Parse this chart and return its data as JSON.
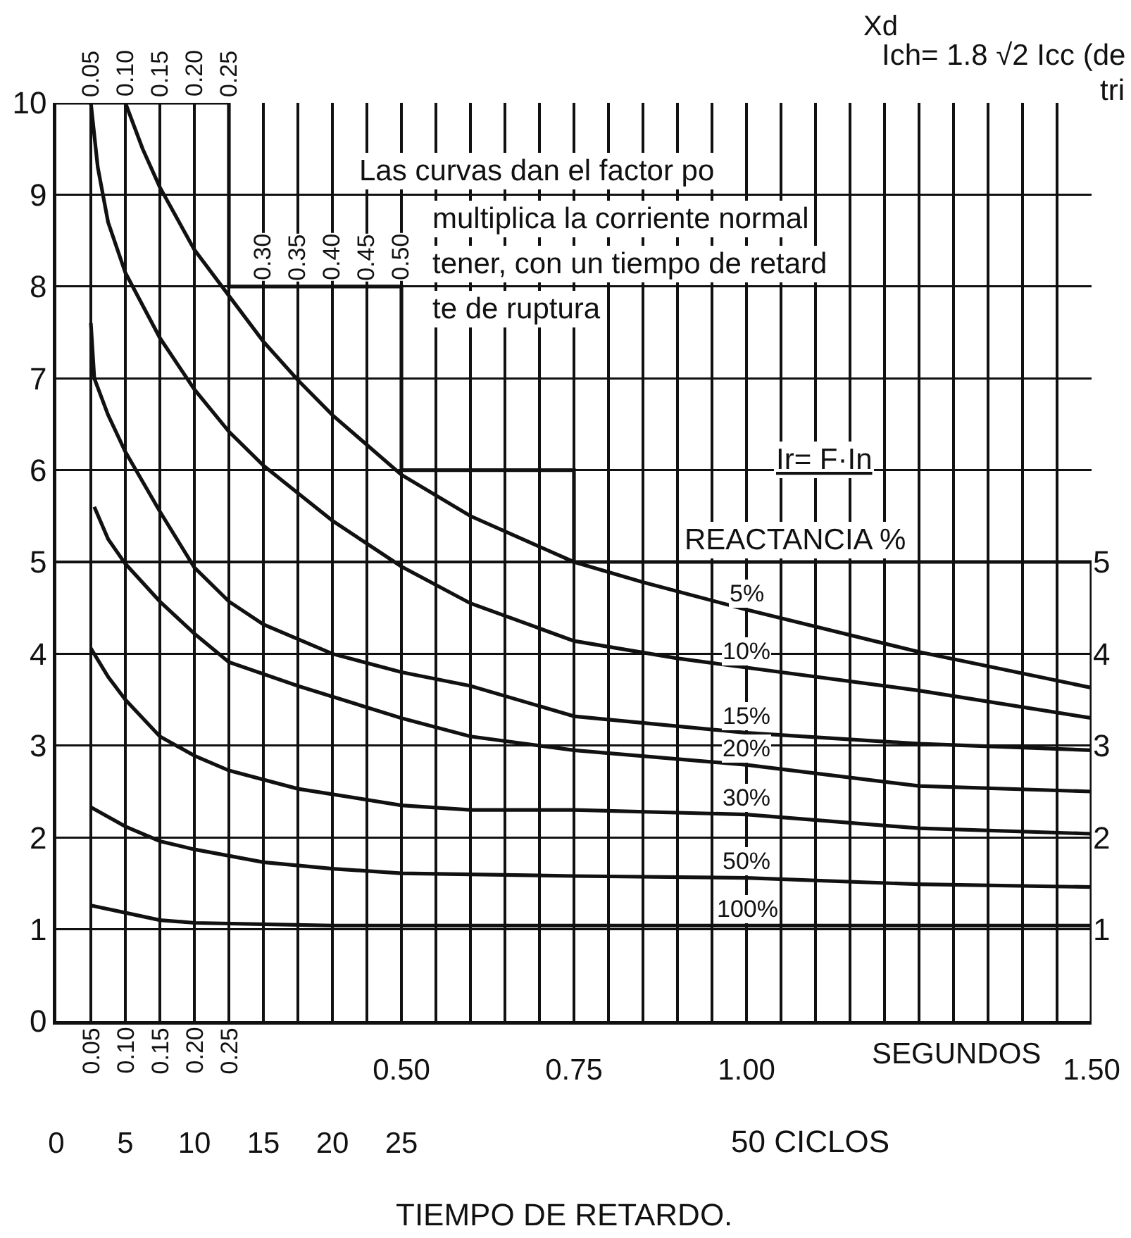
{
  "chart_data": {
    "type": "line",
    "xlabel": "TIEMPO DE RETARDO.",
    "x2label": "50 CICLOS",
    "legend_title": "REACTANCIA %",
    "annotations": [
      "Xd",
      "Ich= 1.8 √2 Icc (de",
      "tri",
      "Las curvas dan el factor po",
      "multiplica la corriente normal",
      "tener, con un tiempo de retard",
      "te de ruptura",
      "Ir= F·In",
      "SEGUNDOS",
      {
        "text": "0.05",
        "x": 0.05,
        "y": 10
      },
      {
        "text": "0.10",
        "x": 0.1,
        "y": 10
      },
      {
        "text": "0.15",
        "x": 0.15,
        "y": 10
      },
      {
        "text": "0.20",
        "x": 0.2,
        "y": 10
      },
      {
        "text": "0.25",
        "x": 0.25,
        "y": 10
      },
      {
        "text": "0.30",
        "x": 0.3,
        "y": 8
      },
      {
        "text": "0.35",
        "x": 0.35,
        "y": 8
      },
      {
        "text": "0.40",
        "x": 0.4,
        "y": 8
      },
      {
        "text": "0.45",
        "x": 0.45,
        "y": 8
      },
      {
        "text": "0.50",
        "x": 0.5,
        "y": 8
      },
      "0.05",
      "0.10",
      "0.15",
      "0.20",
      "0.25"
    ],
    "series": [
      {
        "name": "5%",
        "color": "#111111",
        "x": [
          0.1,
          0.125,
          0.15,
          0.2,
          0.25,
          0.3,
          0.35,
          0.4,
          0.5,
          0.6,
          0.75,
          0.85,
          1.0,
          1.25,
          1.5
        ],
        "values": [
          10,
          9.5,
          9.08,
          8.4,
          7.9,
          7.4,
          6.98,
          6.6,
          5.95,
          5.5,
          5.0,
          4.78,
          4.48,
          4.02,
          3.63
        ]
      },
      {
        "name": "10%",
        "color": "#111111",
        "x": [
          0.05,
          0.06,
          0.075,
          0.1,
          0.15,
          0.2,
          0.25,
          0.3,
          0.35,
          0.4,
          0.5,
          0.6,
          0.75,
          0.9,
          1.0,
          1.25,
          1.5
        ],
        "values": [
          10,
          9.3,
          8.7,
          8.15,
          7.44,
          6.88,
          6.42,
          6.05,
          5.75,
          5.45,
          4.95,
          4.55,
          4.14,
          3.95,
          3.85,
          3.6,
          3.3
        ]
      },
      {
        "name": "15%",
        "color": "#111111",
        "x": [
          0.05,
          0.055,
          0.075,
          0.1,
          0.15,
          0.2,
          0.25,
          0.3,
          0.4,
          0.5,
          0.6,
          0.75,
          1.0,
          1.25,
          1.5
        ],
        "values": [
          7.6,
          7.0,
          6.6,
          6.2,
          5.55,
          4.94,
          4.57,
          4.32,
          4.0,
          3.8,
          3.65,
          3.32,
          3.14,
          3.02,
          2.95
        ]
      },
      {
        "name": "20%",
        "color": "#111111",
        "x": [
          0.055,
          0.075,
          0.1,
          0.15,
          0.2,
          0.25,
          0.35,
          0.5,
          0.6,
          0.75,
          1.0,
          1.25,
          1.5
        ],
        "values": [
          5.6,
          5.25,
          4.98,
          4.57,
          4.22,
          3.91,
          3.65,
          3.3,
          3.1,
          2.95,
          2.79,
          2.56,
          2.5
        ]
      },
      {
        "name": "30%",
        "color": "#111111",
        "x": [
          0.05,
          0.075,
          0.1,
          0.15,
          0.2,
          0.25,
          0.35,
          0.5,
          0.6,
          0.75,
          1.0,
          1.25,
          1.5
        ],
        "values": [
          4.06,
          3.75,
          3.5,
          3.1,
          2.89,
          2.73,
          2.53,
          2.35,
          2.3,
          2.3,
          2.25,
          2.1,
          2.04
        ]
      },
      {
        "name": "50%",
        "color": "#111111",
        "x": [
          0.05,
          0.1,
          0.15,
          0.2,
          0.3,
          0.4,
          0.5,
          0.75,
          1.0,
          1.25,
          1.5
        ],
        "values": [
          2.33,
          2.12,
          1.96,
          1.87,
          1.73,
          1.66,
          1.61,
          1.58,
          1.56,
          1.49,
          1.46
        ]
      },
      {
        "name": "100%",
        "color": "#111111",
        "x": [
          0.05,
          0.1,
          0.15,
          0.2,
          0.4,
          0.75,
          1.0,
          1.25,
          1.5
        ],
        "values": [
          1.26,
          1.18,
          1.1,
          1.07,
          1.04,
          1.04,
          1.04,
          1.04,
          1.04
        ]
      },
      {
        "type": "step",
        "color": "#111111",
        "x": [
          0,
          0.25,
          0.5,
          0.75,
          1.5,
          1.5
        ],
        "values": [
          10,
          8,
          6,
          5,
          5,
          0
        ]
      }
    ],
    "xlim": [
      0,
      1.5
    ],
    "xticks": [
      {
        "value": 0,
        "label": null
      },
      {
        "value": 0.05,
        "label": null
      },
      {
        "value": 0.1,
        "label": null
      },
      {
        "value": 0.15,
        "label": null
      },
      {
        "value": 0.2,
        "label": null
      },
      {
        "value": 0.25,
        "label": null
      },
      {
        "value": 0.3,
        "label": null
      },
      {
        "value": 0.35,
        "label": null
      },
      {
        "value": 0.4,
        "label": null
      },
      {
        "value": 0.45,
        "label": null
      },
      {
        "value": 0.5,
        "label": "0.50"
      },
      {
        "value": 0.55,
        "label": null
      },
      {
        "value": 0.6,
        "label": null
      },
      {
        "value": 0.65,
        "label": null
      },
      {
        "value": 0.7,
        "label": null
      },
      {
        "value": 0.75,
        "label": "0.75"
      },
      {
        "value": 0.8,
        "label": null
      },
      {
        "value": 0.85,
        "label": null
      },
      {
        "value": 0.9,
        "label": null
      },
      {
        "value": 0.95,
        "label": null
      },
      {
        "value": 1,
        "label": "1.00"
      },
      {
        "value": 1.05,
        "label": null
      },
      {
        "value": 1.1,
        "label": null
      },
      {
        "value": 1.15,
        "label": null
      },
      {
        "value": 1.2,
        "label": null
      },
      {
        "value": 1.25,
        "label": null
      },
      {
        "value": 1.3,
        "label": null
      },
      {
        "value": 1.35,
        "label": null
      },
      {
        "value": 1.4,
        "label": null
      },
      {
        "value": 1.45,
        "label": null
      },
      {
        "value": 1.5,
        "label": "1.50"
      }
    ],
    "x2lim": [
      0,
      75
    ],
    "x2ticks": [
      0,
      5,
      10,
      15,
      20,
      25
    ],
    "ylim": [
      0,
      10
    ],
    "yticks": [
      0,
      1,
      2,
      3,
      4,
      5,
      6,
      7,
      8,
      9,
      10
    ],
    "y2lim": [
      0,
      10
    ],
    "y2ticks": [
      1,
      2,
      3,
      4,
      5
    ],
    "grid": true,
    "legend": false,
    "marker": "none",
    "line_style": "solid"
  }
}
